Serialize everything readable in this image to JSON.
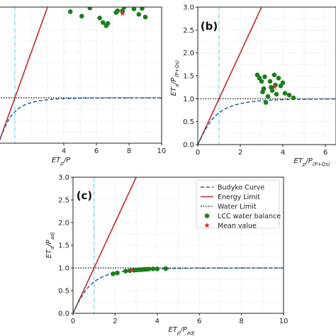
{
  "chart_data": [
    {
      "panel": "a",
      "type": "scatter",
      "title": "",
      "xlabel": "ET_p/P",
      "ylabel": "",
      "xlim": [
        0,
        10
      ],
      "ylim": [
        0,
        3
      ],
      "xticks": [
        "4",
        "6",
        "8",
        "10"
      ],
      "yticks": [],
      "grid": true,
      "lcc_points": {
        "x": [
          4.4,
          5.1,
          5.6,
          6.2,
          6.4,
          6.6,
          6.7,
          7.2,
          7.3,
          7.6,
          7.7,
          8.3,
          8.6,
          8.8,
          9.0
        ],
        "y": [
          2.9,
          2.8,
          2.98,
          2.76,
          2.66,
          2.59,
          2.64,
          2.88,
          2.92,
          2.92,
          3.0,
          2.96,
          2.84,
          2.97,
          2.78
        ]
      },
      "mean_point": {
        "x": 7.6,
        "y": 2.86
      }
    },
    {
      "panel": "b",
      "type": "scatter",
      "label": "(b)",
      "title": "",
      "xlabel": "ET_p/P_(P+Qs)",
      "ylabel": "ET_a/P_(P+Qs)",
      "xlim": [
        0,
        6.5
      ],
      "ylim": [
        0,
        3
      ],
      "xticks": [
        "0",
        "2",
        "4",
        "6"
      ],
      "yticks": [
        "0.0",
        "0.5",
        "1.0",
        "1.5",
        "2.0",
        "2.5",
        "3.0"
      ],
      "grid": true,
      "lcc_points": {
        "x": [
          2.8,
          2.9,
          3.0,
          3.05,
          3.1,
          3.2,
          3.3,
          3.4,
          3.45,
          3.5,
          3.6,
          3.65,
          3.7,
          3.8,
          3.9,
          4.0,
          4.1,
          4.3,
          4.5,
          3.15
        ],
        "y": [
          1.52,
          1.45,
          1.38,
          1.15,
          1.22,
          0.92,
          1.05,
          1.38,
          1.25,
          1.18,
          1.52,
          1.3,
          1.1,
          1.45,
          1.28,
          1.35,
          1.12,
          1.08,
          1.02,
          1.48
        ]
      },
      "mean_point": {
        "x": 3.6,
        "y": 1.26
      }
    },
    {
      "panel": "c",
      "type": "scatter",
      "label": "(c)",
      "title": "",
      "xlabel": "ET_p/P_adj",
      "ylabel": "ET_a/P_adj",
      "xlim": [
        0,
        10
      ],
      "ylim": [
        0,
        3
      ],
      "xticks": [
        "0",
        "2",
        "4",
        "6",
        "8",
        "10"
      ],
      "yticks": [
        "0.0",
        "0.5",
        "1.0",
        "1.5",
        "2.0",
        "2.5",
        "3.0"
      ],
      "grid": true,
      "legend_position": "top-right",
      "legend": [
        "Budyko Curve",
        "Energy Limit",
        "Water Limit",
        "LCC water balance",
        "Mean value"
      ],
      "lcc_points": {
        "x": [
          1.9,
          2.1,
          2.5,
          2.7,
          2.9,
          3.0,
          3.1,
          3.2,
          3.3,
          3.4,
          3.5,
          3.6,
          3.8,
          4.0,
          4.4
        ],
        "y": [
          0.87,
          0.89,
          0.93,
          0.94,
          0.95,
          0.955,
          0.96,
          0.96,
          0.965,
          0.97,
          0.97,
          0.975,
          0.98,
          0.98,
          0.985
        ]
      },
      "mean_point": {
        "x": 2.8,
        "y": 0.95
      }
    }
  ],
  "colors": {
    "budyko": "#1f5fa0",
    "energy": "#c62828",
    "water": "#000000",
    "points": "#1a7f1a",
    "mean": "#d32f2f",
    "aridity_line": "#4dd0e1",
    "grid": "#d9d9d9"
  }
}
